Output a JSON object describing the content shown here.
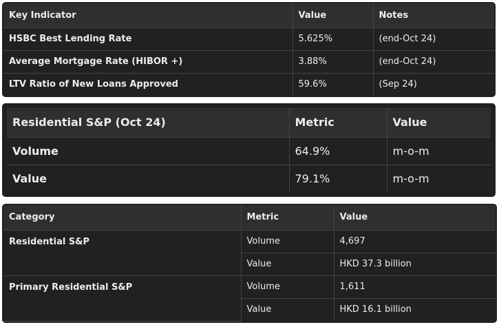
{
  "tables": [
    {
      "header": [
        "Key Indicator",
        "Value",
        "Notes"
      ],
      "rows": [
        [
          "HSBC Best Lending Rate",
          "5.625%",
          "(end-Oct 24)"
        ],
        [
          "Average Mortgage Rate (HIBOR +)",
          "3.88%",
          "(end-Oct 24)"
        ],
        [
          "LTV Ratio of New Loans Approved",
          "59.6%",
          "(Sep 24)"
        ]
      ]
    },
    {
      "header": [
        "Residential S&P (Oct 24)",
        "Metric",
        "Value"
      ],
      "rows": [
        [
          "Volume",
          "64.9%",
          "m-o-m"
        ],
        [
          "Value",
          "79.1%",
          "m-o-m"
        ]
      ]
    },
    {
      "header": [
        "Category",
        "Metric",
        "Value"
      ],
      "groups": [
        {
          "category": "Residential S&P",
          "rows": [
            [
              "Volume",
              "4,697"
            ],
            [
              "Value",
              "HKD 37.3 billion"
            ]
          ]
        },
        {
          "category": "Primary Residential S&P",
          "rows": [
            [
              "Volume",
              "1,611"
            ],
            [
              "Value",
              "HKD 16.1 billion"
            ]
          ]
        }
      ]
    }
  ]
}
